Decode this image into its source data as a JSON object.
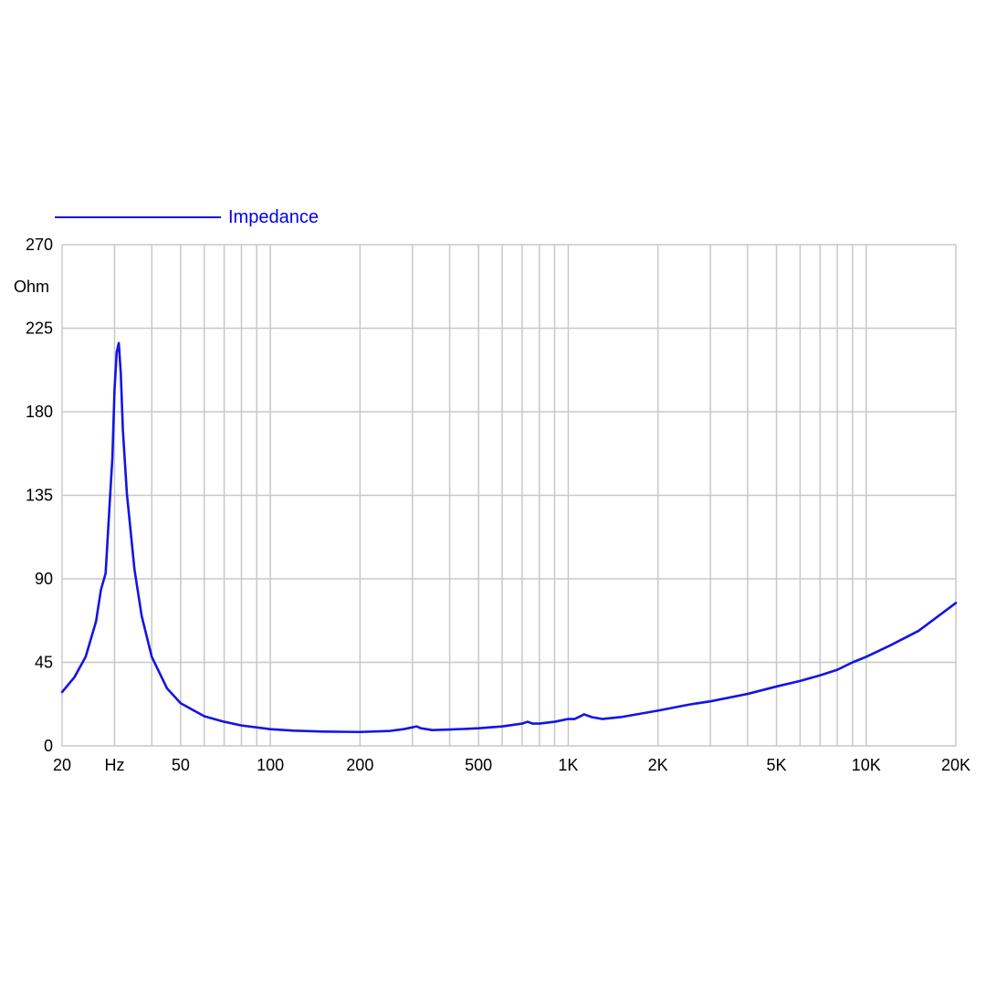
{
  "chart_data": {
    "type": "line",
    "title": "",
    "xscale": "log",
    "xlim": [
      20,
      20000
    ],
    "ylim": [
      0,
      270
    ],
    "grid": true,
    "legend_position": "top-left",
    "y_unit_label": "Ohm",
    "x_unit_label": "Hz",
    "colors": {
      "series": "#1414e6",
      "legend_text": "#0000ee",
      "grid": "#c8c8c8"
    },
    "x_ticks": [
      {
        "value": 20,
        "label": "20"
      },
      {
        "value": 50,
        "label": "50"
      },
      {
        "value": 100,
        "label": "100"
      },
      {
        "value": 200,
        "label": "200"
      },
      {
        "value": 500,
        "label": "500"
      },
      {
        "value": 1000,
        "label": "1K"
      },
      {
        "value": 2000,
        "label": "2K"
      },
      {
        "value": 5000,
        "label": "5K"
      },
      {
        "value": 10000,
        "label": "10K"
      },
      {
        "value": 20000,
        "label": "20K"
      }
    ],
    "y_ticks": [
      {
        "value": 0,
        "label": "0"
      },
      {
        "value": 45,
        "label": "45"
      },
      {
        "value": 90,
        "label": "90"
      },
      {
        "value": 135,
        "label": "135"
      },
      {
        "value": 180,
        "label": "180"
      },
      {
        "value": 225,
        "label": "225"
      },
      {
        "value": 270,
        "label": "270"
      }
    ],
    "series": [
      {
        "name": "Impedance",
        "x": [
          20,
          22,
          24,
          26,
          27,
          28,
          29,
          29.5,
          30,
          30.5,
          31,
          31.5,
          32,
          33,
          35,
          37,
          40,
          45,
          50,
          60,
          70,
          80,
          100,
          120,
          150,
          200,
          250,
          280,
          300,
          310,
          320,
          350,
          400,
          500,
          600,
          700,
          730,
          760,
          800,
          900,
          1000,
          1050,
          1100,
          1130,
          1200,
          1300,
          1500,
          2000,
          2500,
          2600,
          3000,
          4000,
          5000,
          6000,
          7000,
          8000,
          9000,
          10000,
          12000,
          15000,
          20000
        ],
        "y": [
          29,
          37,
          48,
          67,
          84,
          93,
          135,
          155,
          192,
          212,
          217,
          200,
          170,
          136,
          95,
          70,
          48,
          31,
          23,
          16,
          13,
          11,
          9,
          8.2,
          7.7,
          7.5,
          8,
          9,
          10,
          10.5,
          9.5,
          8.5,
          8.8,
          9.5,
          10.5,
          12,
          13,
          12,
          12,
          13,
          14.5,
          14.5,
          16,
          17,
          15.5,
          14.5,
          15.5,
          19,
          22,
          22.5,
          24,
          28,
          32,
          35,
          38,
          41,
          45,
          48,
          54,
          62,
          77
        ]
      }
    ]
  }
}
